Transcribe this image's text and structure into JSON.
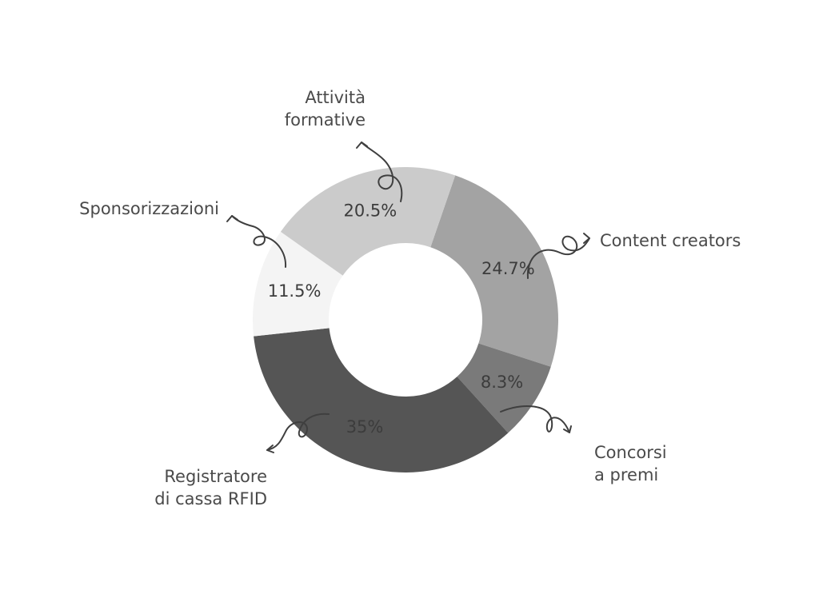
{
  "chart_data": {
    "type": "pie",
    "donut": true,
    "title": "",
    "categories": [
      "Content creators",
      "Concorsi a premi",
      "Registratore di cassa RFID",
      "Sponsorizzazioni",
      "Attività formative"
    ],
    "category_lines": [
      [
        "Content creators"
      ],
      [
        "Concorsi",
        "a premi"
      ],
      [
        "Registratore",
        "di cassa RFID"
      ],
      [
        "Sponsorizzazioni"
      ],
      [
        "Attività",
        "formative"
      ]
    ],
    "values": [
      24.7,
      8.3,
      35,
      11.5,
      20.5
    ],
    "value_labels": [
      "24.7%",
      "8.3%",
      "35%",
      "11.5%",
      "20.5%"
    ],
    "colors": [
      "#a3a3a3",
      "#7a7a7a",
      "#555555",
      "#f4f4f4",
      "#cbcbcb"
    ],
    "legend": "none",
    "start_angle_deg": 19,
    "direction": "clockwise"
  }
}
